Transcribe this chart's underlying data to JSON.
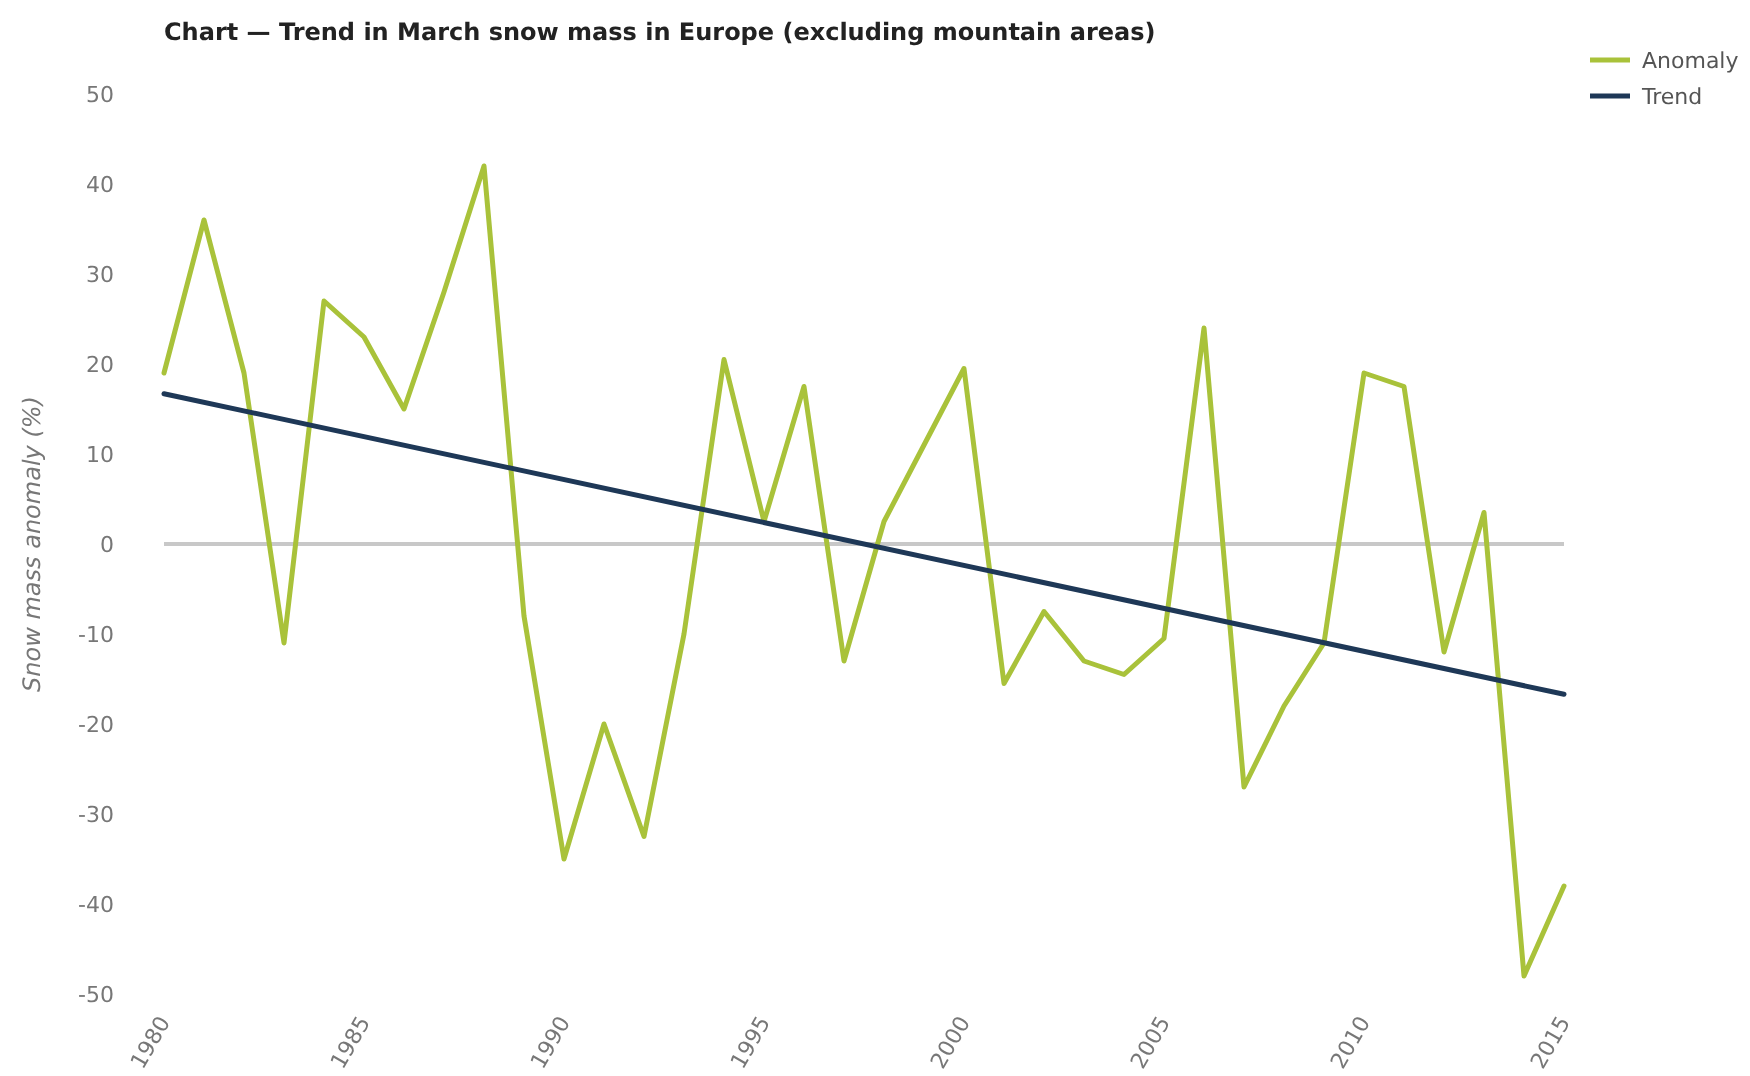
{
  "chart_data": {
    "type": "line",
    "title": "Chart — Trend in March snow mass in Europe (excluding mountain areas)",
    "ylabel": "Snow mass anomaly (%)",
    "x": [
      1980,
      1981,
      1982,
      1983,
      1984,
      1985,
      1986,
      1987,
      1988,
      1989,
      1990,
      1991,
      1992,
      1993,
      1994,
      1995,
      1996,
      1997,
      1998,
      1999,
      2000,
      2001,
      2002,
      2003,
      2004,
      2005,
      2006,
      2007,
      2008,
      2009,
      2010,
      2011,
      2012,
      2013,
      2014,
      2015
    ],
    "series": [
      {
        "name": "Anomaly",
        "color": "#a9c23a",
        "values": [
          19,
          36,
          19,
          -11,
          27,
          23,
          15,
          28,
          42,
          -8,
          -35,
          -20,
          -32.5,
          -10,
          20.5,
          2.5,
          17.5,
          -13,
          2.5,
          11,
          19.5,
          -15.5,
          -7.5,
          -13,
          -14.5,
          -10.5,
          24,
          -27,
          -18,
          -11,
          19,
          17.5,
          -12,
          3.5,
          -48,
          -38
        ]
      },
      {
        "name": "Trend",
        "color": "#1e3857",
        "x": [
          1980,
          2015
        ],
        "values": [
          16.7,
          -16.7
        ]
      }
    ],
    "xlim": [
      1980,
      2015
    ],
    "xticks": [
      1980,
      1985,
      1990,
      1995,
      2000,
      2005,
      2010,
      2015
    ],
    "ylim": [
      -50,
      50
    ],
    "yticks": [
      -50,
      -40,
      -30,
      -20,
      -10,
      0,
      10,
      20,
      30,
      40,
      50
    ],
    "ref_lines": [
      {
        "axis": "y",
        "value": 0,
        "color": "#c8c8c8"
      }
    ],
    "grid": false,
    "legend": "top right",
    "marker": "none",
    "line_style": "solid"
  }
}
